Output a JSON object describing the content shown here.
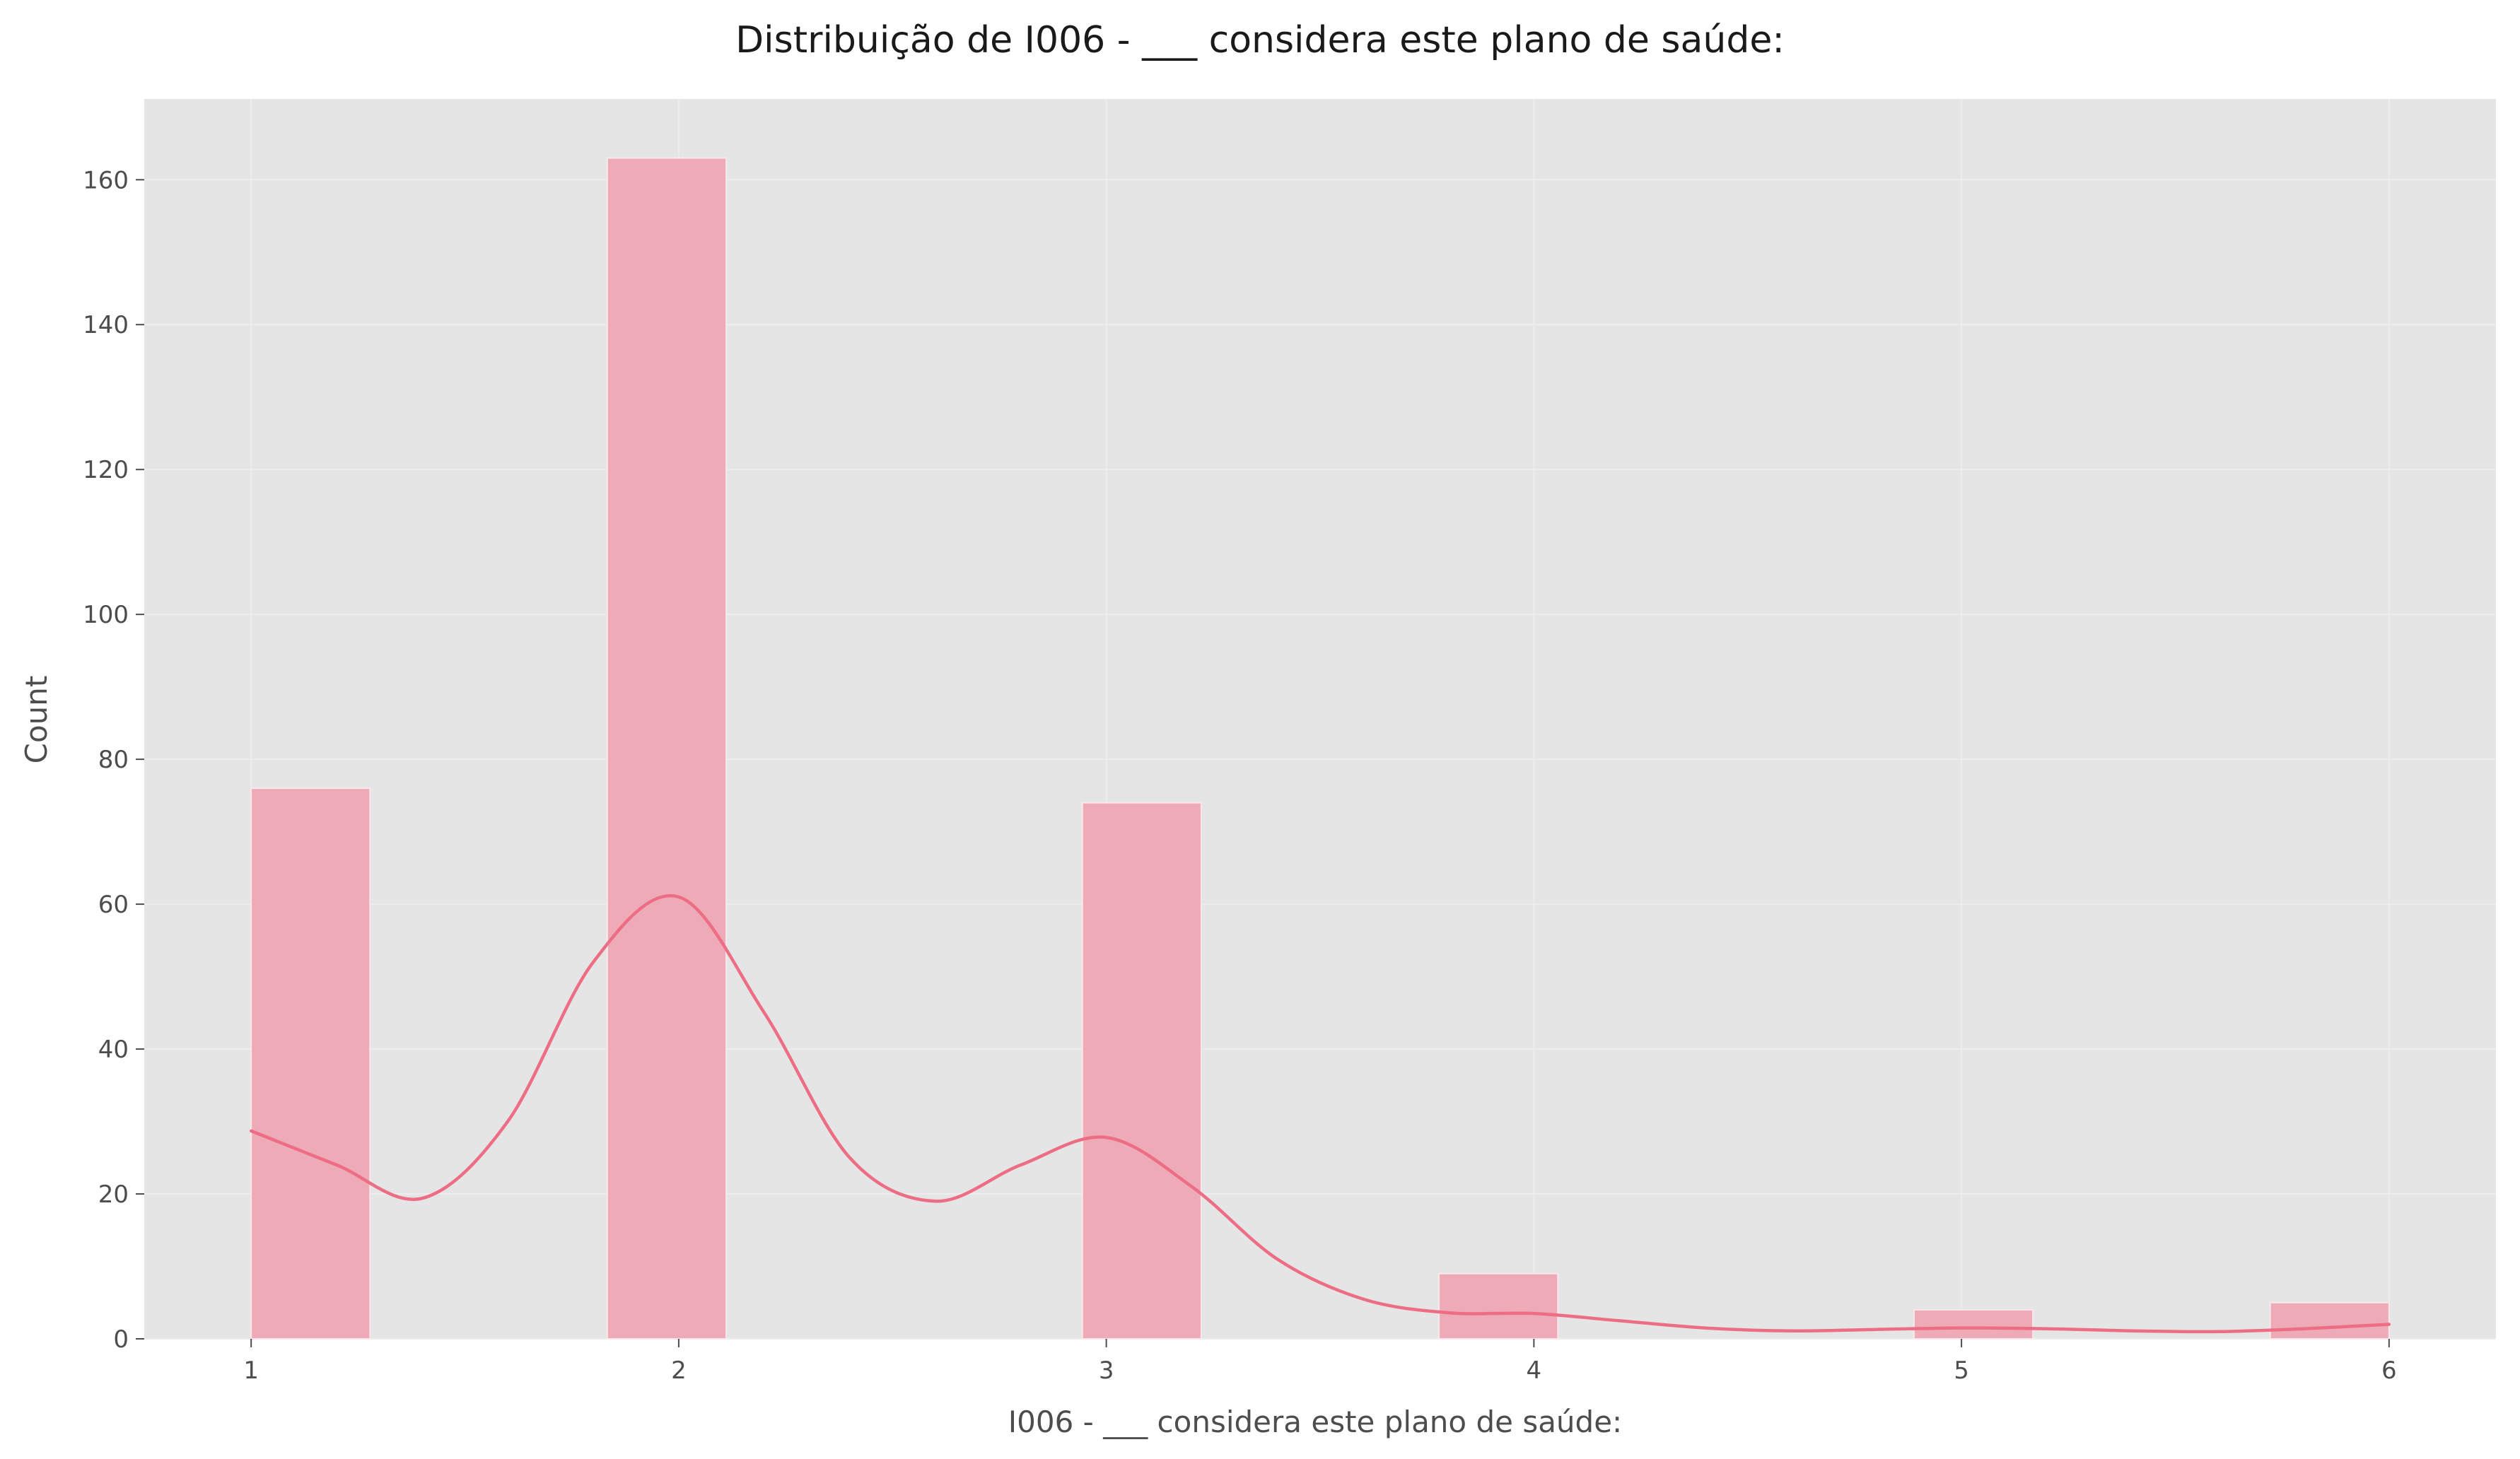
{
  "chart_data": {
    "type": "bar",
    "title": "Distribuição de I006 -  ___ considera este plano de saúde:",
    "xlabel": "I006 -  ___ considera este plano de saúde:",
    "ylabel": "Count",
    "xlim": [
      0.75,
      6.25
    ],
    "ylim": [
      0,
      171.15
    ],
    "x_ticks": [
      "1",
      "2",
      "3",
      "4",
      "5",
      "6"
    ],
    "y_ticks": [
      "0",
      "20",
      "40",
      "60",
      "80",
      "100",
      "120",
      "140",
      "160"
    ],
    "grid": true,
    "bins": [
      {
        "x0": 1.0,
        "x1": 1.278,
        "count": 76
      },
      {
        "x0": 1.833,
        "x1": 2.111,
        "count": 163
      },
      {
        "x0": 2.944,
        "x1": 3.222,
        "count": 74
      },
      {
        "x0": 3.778,
        "x1": 4.056,
        "count": 9
      },
      {
        "x0": 4.889,
        "x1": 5.167,
        "count": 4
      },
      {
        "x0": 5.722,
        "x1": 6.0,
        "count": 5
      }
    ],
    "kde": {
      "x": [
        1.0,
        1.2,
        1.4,
        1.6,
        1.8,
        2.0,
        2.2,
        2.4,
        2.6,
        2.8,
        3.0,
        3.2,
        3.4,
        3.6,
        3.8,
        4.0,
        4.2,
        4.4,
        4.6,
        4.8,
        5.0,
        5.2,
        5.4,
        5.6,
        5.8,
        6.0
      ],
      "y": [
        28.7,
        24.0,
        19.4,
        30.0,
        52.0,
        61.0,
        45.0,
        25.0,
        19.0,
        24.0,
        27.8,
        21.0,
        11.0,
        5.5,
        3.6,
        3.5,
        2.5,
        1.5,
        1.1,
        1.3,
        1.5,
        1.4,
        1.1,
        1.0,
        1.4,
        2.0
      ]
    },
    "colors": {
      "bar_fill": "#eeaab7",
      "bar_edge": "#fbe6ea",
      "kde_line": "#ed6d85",
      "plot_background": "#e5e5e5",
      "grid": "#ededed"
    }
  }
}
